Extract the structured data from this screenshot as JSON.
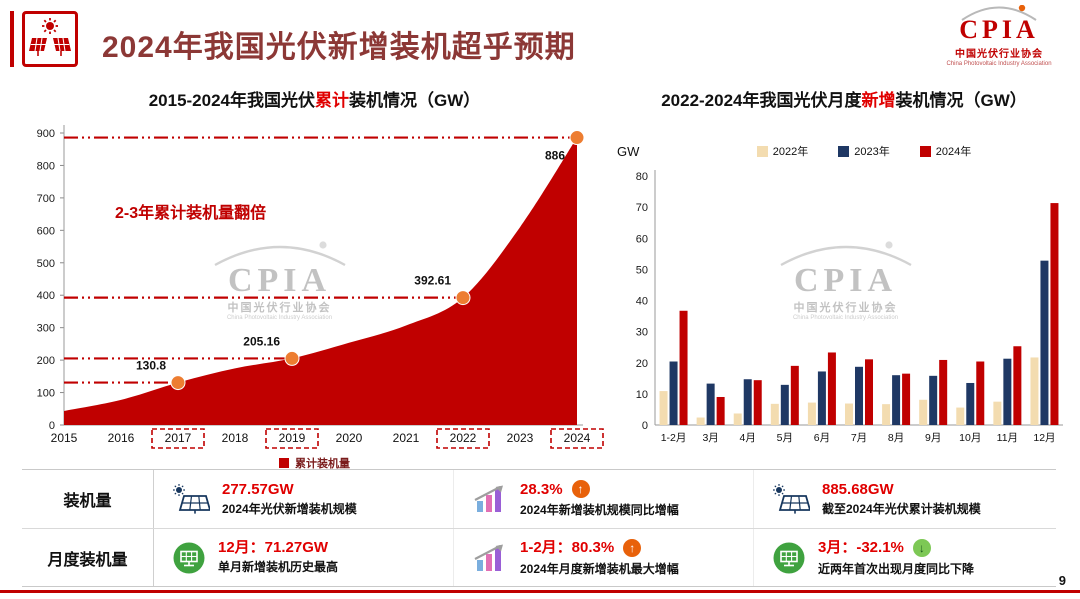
{
  "header": {
    "title": "2024年我国光伏新增装机超乎预期",
    "logo": {
      "brand": "CPIA",
      "org": "中国光伏行业协会",
      "sub": "China Photovoltaic Industry Association"
    }
  },
  "watermark": {
    "brand": "CPIA",
    "org": "中国光伏行业协会",
    "sub": "China Photovoltaic Industry Association"
  },
  "left_chart": {
    "title_prefix": "2015-2024年我国光伏",
    "title_highlight": "累计",
    "title_suffix": "装机情况（GW）"
  },
  "right_chart": {
    "title_prefix": "2022-2024年我国光伏月度",
    "title_highlight": "新增",
    "title_suffix": "装机情况（GW）"
  },
  "chart_data": [
    {
      "type": "area",
      "title": "2015-2024年我国光伏累计装机情况（GW）",
      "x": [
        2015,
        2016,
        2017,
        2018,
        2019,
        2020,
        2021,
        2022,
        2023,
        2024
      ],
      "values": [
        43.2,
        77.4,
        130.8,
        174.6,
        205.16,
        253.4,
        306.6,
        392.61,
        609.5,
        886
      ],
      "ylim": [
        0,
        900
      ],
      "ytick_step": 100,
      "series_color": "#c00000",
      "marker_color": "#ed7d31",
      "annotation": "2-3年累计装机量翻倍",
      "highlight_points": [
        {
          "x": 2017,
          "value": 130.8,
          "label": "130.8"
        },
        {
          "x": 2019,
          "value": 205.16,
          "label": "205.16"
        },
        {
          "x": 2022,
          "value": 392.61,
          "label": "392.61"
        },
        {
          "x": 2024,
          "value": 886,
          "label": "886"
        }
      ],
      "legend": "累计装机量",
      "grid": false
    },
    {
      "type": "bar",
      "title": "2022-2024年我国光伏月度新增装机情况（GW）",
      "ylabel": "GW",
      "ylim": [
        0,
        80
      ],
      "ytick_step": 10,
      "legend_position": "top",
      "grid": false,
      "categories": [
        "1-2月",
        "3月",
        "4月",
        "5月",
        "6月",
        "7月",
        "8月",
        "9月",
        "10月",
        "11月",
        "12月"
      ],
      "series": [
        {
          "name": "2022年",
          "color": "#f3dcb0",
          "values": [
            10.9,
            2.4,
            3.7,
            6.8,
            7.2,
            6.9,
            6.7,
            8.1,
            5.6,
            7.5,
            21.7
          ]
        },
        {
          "name": "2023年",
          "color": "#1f3864",
          "values": [
            20.4,
            13.3,
            14.7,
            12.9,
            17.2,
            18.7,
            16.0,
            15.8,
            13.5,
            21.3,
            52.8
          ]
        },
        {
          "name": "2024年",
          "color": "#c00000",
          "values": [
            36.7,
            9.0,
            14.4,
            19.0,
            23.3,
            21.1,
            16.5,
            20.9,
            20.4,
            25.3,
            71.3
          ]
        }
      ]
    }
  ],
  "summary_table": {
    "rows": [
      {
        "label": "装机量",
        "cells": [
          {
            "icon": "solar-panel-icon",
            "value": "277.57GW",
            "caption": "2024年光伏新增装机规模"
          },
          {
            "icon": "growth-chart-icon",
            "value": "28.3%",
            "arrow": "up",
            "caption": "2024年新增装机规模同比增幅"
          },
          {
            "icon": "solar-panel-icon",
            "value": "885.68GW",
            "caption": "截至2024年光伏累计装机规模"
          }
        ]
      },
      {
        "label": "月度装机量",
        "cells": [
          {
            "icon": "green-panel-icon",
            "value": "12月：71.27GW",
            "caption": "单月新增装机历史最高"
          },
          {
            "icon": "growth-chart-icon",
            "value": "1-2月：80.3%",
            "arrow": "up",
            "caption": "2024年月度新增装机最大增幅"
          },
          {
            "icon": "green-panel-icon",
            "value": "3月：-32.1%",
            "arrow": "down",
            "caption": "近两年首次出现月度同比下降"
          }
        ]
      }
    ]
  },
  "footer": {
    "page_number": "9"
  }
}
